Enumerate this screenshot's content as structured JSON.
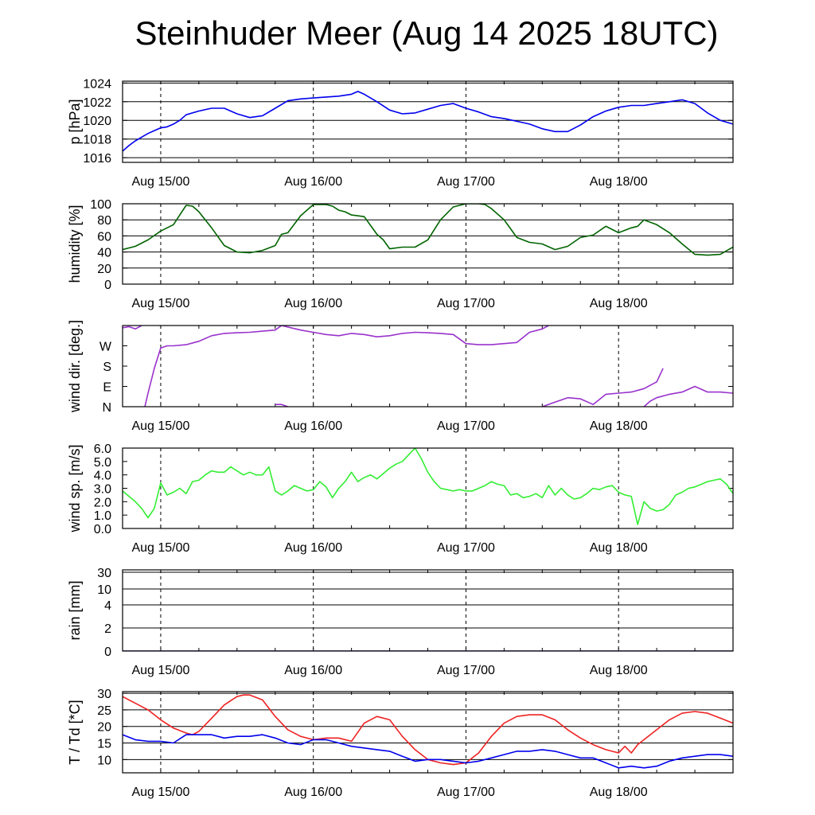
{
  "title": "Steinhuder Meer (Aug 14 2025 18UTC)",
  "colors": {
    "p": "#0000ee",
    "humidity": "#006400",
    "wind_dir": "#9932cc",
    "wind_speed": "#33ee33",
    "rain": "#000080",
    "T": "#ee2222",
    "Td": "#0000ee",
    "grid": "#000000"
  },
  "chart_data": [
    {
      "type": "line",
      "ylabel": "p [hPa]",
      "x_unit": "hours after Aug 14 18UTC",
      "xlim": [
        0,
        96
      ],
      "x_tick_labels": [
        "Aug 15/00",
        "Aug 16/00",
        "Aug 17/00",
        "Aug 18/00"
      ],
      "x_tick_hours": [
        6,
        30,
        54,
        78
      ],
      "ylim": [
        1015.5,
        1024.2
      ],
      "y_ticks": [
        1016,
        1018,
        1020,
        1022,
        1024
      ],
      "y_tick_labels": [
        "1016",
        "1018",
        "1020",
        "1022",
        "1024"
      ],
      "grid": true,
      "series": [
        {
          "color": "p",
          "x": [
            0,
            1,
            2,
            3,
            4,
            5,
            6,
            7,
            8,
            9,
            10,
            12,
            14,
            16,
            18,
            20,
            22,
            24,
            26,
            28,
            30,
            32,
            34,
            36,
            37,
            38,
            40,
            42,
            44,
            46,
            48,
            50,
            52,
            54,
            56,
            58,
            60,
            62,
            64,
            66,
            68,
            70,
            72,
            74,
            76,
            78,
            80,
            82,
            84,
            86,
            88,
            90,
            92,
            94,
            96
          ],
          "y": [
            1016.7,
            1017.3,
            1017.8,
            1018.2,
            1018.6,
            1018.9,
            1019.2,
            1019.3,
            1019.6,
            1020.0,
            1020.6,
            1021.0,
            1021.3,
            1021.3,
            1020.7,
            1020.3,
            1020.5,
            1021.3,
            1022.1,
            1022.3,
            1022.4,
            1022.5,
            1022.6,
            1022.8,
            1023.1,
            1022.8,
            1022.0,
            1021.1,
            1020.7,
            1020.8,
            1021.2,
            1021.6,
            1021.8,
            1021.3,
            1020.9,
            1020.4,
            1020.2,
            1019.9,
            1019.6,
            1019.1,
            1018.8,
            1018.8,
            1019.5,
            1020.4,
            1021.0,
            1021.4,
            1021.6,
            1021.6,
            1021.8,
            1022.0,
            1022.2,
            1021.8,
            1020.8,
            1020.0,
            1019.6
          ]
        }
      ]
    },
    {
      "type": "line",
      "ylabel": "humidity [%]",
      "xlim": [
        0,
        96
      ],
      "x_tick_labels": [
        "Aug 15/00",
        "Aug 16/00",
        "Aug 17/00",
        "Aug 18/00"
      ],
      "x_tick_hours": [
        6,
        30,
        54,
        78
      ],
      "ylim": [
        0,
        100
      ],
      "y_ticks": [
        0,
        20,
        40,
        60,
        80,
        100
      ],
      "y_tick_labels": [
        "0",
        "20",
        "40",
        "60",
        "80",
        "100"
      ],
      "grid": true,
      "series": [
        {
          "color": "humidity",
          "x": [
            0,
            2,
            4,
            6,
            8,
            9,
            10,
            11,
            12,
            14,
            16,
            18,
            20,
            22,
            24,
            25,
            26,
            28,
            30,
            32,
            33,
            34,
            35,
            36,
            38,
            40,
            41,
            42,
            44,
            46,
            48,
            50,
            52,
            54,
            56,
            57,
            58,
            60,
            62,
            64,
            66,
            68,
            70,
            72,
            74,
            76,
            78,
            80,
            81,
            82,
            84,
            86,
            88,
            90,
            92,
            94,
            96
          ],
          "y": [
            43,
            47,
            55,
            66,
            74,
            86,
            98,
            97,
            90,
            70,
            48,
            40,
            39,
            42,
            48,
            62,
            64,
            85,
            99,
            99,
            97,
            92,
            90,
            86,
            84,
            62,
            55,
            44,
            46,
            46,
            55,
            80,
            96,
            100,
            100,
            99,
            94,
            80,
            58,
            52,
            50,
            43,
            47,
            58,
            61,
            72,
            64,
            70,
            72,
            80,
            74,
            64,
            50,
            37,
            36,
            37,
            46
          ]
        }
      ]
    },
    {
      "type": "line",
      "ylabel": "wind dir. [deg.]",
      "xlim": [
        0,
        96
      ],
      "x_tick_labels": [
        "Aug 15/00",
        "Aug 16/00",
        "Aug 17/00",
        "Aug 18/00"
      ],
      "x_tick_hours": [
        6,
        30,
        54,
        78
      ],
      "ylim": [
        0,
        360
      ],
      "y_ticks": [
        0,
        90,
        180,
        270
      ],
      "y_tick_labels": [
        "N",
        "E",
        "S",
        "W"
      ],
      "grid": false,
      "series": [
        {
          "color": "wind_dir",
          "x": [
            0,
            1,
            2,
            3
          ],
          "y": [
            350,
            355,
            345,
            360
          ]
        },
        {
          "color": "wind_dir",
          "x": [
            3.5,
            4,
            5,
            6,
            7,
            8,
            10,
            12,
            14,
            16,
            18,
            20,
            22,
            24,
            25
          ],
          "y": [
            0,
            60,
            170,
            260,
            270,
            270,
            275,
            290,
            315,
            325,
            328,
            330,
            335,
            340,
            360
          ]
        },
        {
          "color": "wind_dir",
          "x": [
            25,
            28,
            30,
            32,
            34,
            36,
            38,
            40,
            42,
            44,
            46,
            48,
            50,
            52,
            54,
            56,
            58,
            60,
            62,
            64,
            66,
            67
          ],
          "y": [
            360,
            340,
            330,
            320,
            315,
            325,
            320,
            310,
            315,
            325,
            330,
            328,
            325,
            320,
            280,
            275,
            275,
            280,
            285,
            330,
            345,
            360
          ]
        },
        {
          "color": "wind_dir",
          "x": [
            24,
            25,
            26
          ],
          "y": [
            10,
            10,
            0
          ]
        },
        {
          "color": "wind_dir",
          "x": [
            66,
            68,
            70,
            72,
            74,
            76,
            78,
            80,
            82,
            84,
            85
          ],
          "y": [
            0,
            20,
            40,
            35,
            10,
            55,
            60,
            65,
            80,
            110,
            170
          ]
        },
        {
          "color": "wind_dir",
          "x": [
            82,
            83,
            84,
            86,
            88,
            90,
            92,
            94,
            96
          ],
          "y": [
            0,
            25,
            40,
            55,
            65,
            90,
            65,
            65,
            60
          ]
        }
      ]
    },
    {
      "type": "line",
      "ylabel": "wind sp. [m/s]",
      "xlim": [
        0,
        96
      ],
      "x_tick_labels": [
        "Aug 15/00",
        "Aug 16/00",
        "Aug 17/00",
        "Aug 18/00"
      ],
      "x_tick_hours": [
        6,
        30,
        54,
        78
      ],
      "ylim": [
        0,
        6.0
      ],
      "y_ticks": [
        0,
        1,
        2,
        3,
        4,
        5,
        6
      ],
      "y_tick_labels": [
        "0.0",
        "1.0",
        "2.0",
        "3.0",
        "4.0",
        "5.0",
        "6.0"
      ],
      "grid": false,
      "series": [
        {
          "color": "wind_speed",
          "x": [
            0,
            2,
            3,
            4,
            5,
            6,
            7,
            8,
            9,
            10,
            11,
            12,
            13,
            14,
            15,
            16,
            17,
            18,
            19,
            20,
            21,
            22,
            23,
            24,
            25,
            26,
            27,
            28,
            29,
            30,
            31,
            32,
            33,
            34,
            35,
            36,
            37,
            38,
            39,
            40,
            41,
            42,
            43,
            44,
            45,
            46,
            47,
            48,
            49,
            50,
            51,
            52,
            53,
            54,
            55,
            56,
            57,
            58,
            59,
            60,
            61,
            62,
            63,
            64,
            65,
            66,
            67,
            68,
            69,
            70,
            71,
            72,
            73,
            74,
            75,
            76,
            77,
            78,
            79,
            80,
            81,
            82,
            83,
            84,
            85,
            86,
            87,
            88,
            89,
            90,
            91,
            92,
            93,
            94,
            95,
            96
          ],
          "y": [
            2.8,
            2.0,
            1.5,
            0.8,
            1.5,
            3.4,
            2.5,
            2.7,
            3.0,
            2.6,
            3.5,
            3.6,
            4.0,
            4.3,
            4.2,
            4.2,
            4.6,
            4.3,
            4.0,
            4.2,
            4.0,
            4.0,
            4.6,
            2.8,
            2.5,
            2.8,
            3.2,
            3.0,
            2.8,
            2.9,
            3.5,
            3.1,
            2.3,
            3.0,
            3.5,
            4.2,
            3.5,
            3.8,
            4.0,
            3.7,
            4.1,
            4.5,
            4.8,
            5.0,
            5.5,
            6.0,
            5.2,
            4.2,
            3.5,
            3.0,
            2.9,
            2.8,
            2.9,
            2.8,
            2.8,
            3.0,
            3.2,
            3.5,
            3.3,
            3.2,
            2.5,
            2.6,
            2.3,
            2.4,
            2.6,
            2.3,
            3.2,
            2.5,
            3.0,
            2.5,
            2.2,
            2.3,
            2.6,
            3.0,
            2.9,
            3.1,
            3.2,
            2.7,
            2.5,
            2.4,
            0.3,
            2.0,
            1.5,
            1.3,
            1.4,
            1.8,
            2.5,
            2.7,
            3.0,
            3.1,
            3.3,
            3.5,
            3.6,
            3.7,
            3.3,
            2.6
          ]
        }
      ]
    },
    {
      "type": "line",
      "ylabel": "rain [mm]",
      "xlim": [
        0,
        96
      ],
      "x_tick_labels": [
        "Aug 15/00",
        "Aug 16/00",
        "Aug 17/00",
        "Aug 18/00"
      ],
      "x_tick_hours": [
        6,
        30,
        54,
        78
      ],
      "y_scale": "nonlinear",
      "y_ticks": [
        0,
        2,
        4,
        10,
        30
      ],
      "y_tick_labels": [
        "0",
        "2",
        "4",
        "10",
        "30"
      ],
      "grid": true,
      "series": [
        {
          "color": "rain",
          "x": [
            0,
            96
          ],
          "y": [
            0,
            0
          ]
        }
      ]
    },
    {
      "type": "line",
      "ylabel": "T / Td [*C]",
      "xlim": [
        0,
        96
      ],
      "x_tick_labels": [
        "Aug 15/00",
        "Aug 16/00",
        "Aug 17/00",
        "Aug 18/00"
      ],
      "x_tick_hours": [
        6,
        30,
        54,
        78
      ],
      "ylim": [
        6,
        30.5
      ],
      "y_ticks": [
        10,
        15,
        20,
        25,
        30
      ],
      "y_tick_labels": [
        "10",
        "15",
        "20",
        "25",
        "30"
      ],
      "grid": true,
      "series": [
        {
          "color": "T",
          "x": [
            0,
            2,
            4,
            6,
            8,
            10,
            11,
            12,
            14,
            16,
            18,
            19,
            20,
            22,
            24,
            26,
            28,
            30,
            32,
            34,
            36,
            38,
            40,
            42,
            44,
            46,
            48,
            50,
            52,
            54,
            56,
            58,
            60,
            62,
            64,
            66,
            68,
            70,
            72,
            74,
            76,
            78,
            79,
            80,
            81,
            82,
            84,
            86,
            88,
            90,
            92,
            94,
            96
          ],
          "y": [
            29,
            27,
            25,
            22,
            19.5,
            18,
            17.5,
            18.5,
            22.5,
            26.5,
            29,
            29.5,
            29.5,
            28,
            23,
            19,
            17,
            16,
            16.5,
            16.5,
            15.5,
            21,
            23,
            22,
            17,
            13,
            10,
            9,
            8.5,
            9,
            12,
            17,
            21,
            23,
            23.5,
            23.5,
            22,
            19,
            16.5,
            14.5,
            13,
            12,
            14,
            12,
            14.5,
            16,
            19,
            22,
            24,
            24.5,
            24,
            22.5,
            21
          ]
        },
        {
          "color": "Td",
          "x": [
            0,
            2,
            4,
            6,
            8,
            10,
            12,
            14,
            16,
            18,
            20,
            22,
            24,
            26,
            28,
            30,
            32,
            34,
            36,
            38,
            40,
            42,
            44,
            46,
            48,
            50,
            52,
            54,
            56,
            58,
            60,
            62,
            64,
            66,
            68,
            70,
            72,
            74,
            76,
            78,
            80,
            82,
            84,
            86,
            88,
            90,
            92,
            94,
            96
          ],
          "y": [
            17.5,
            16,
            15.5,
            15.5,
            15,
            17.5,
            17.5,
            17.5,
            16.5,
            17,
            17,
            17.5,
            16.5,
            15,
            14.5,
            16,
            16,
            15,
            14,
            13.5,
            13,
            12.5,
            11,
            9.5,
            10,
            10,
            9.5,
            9,
            9.5,
            10.5,
            11.5,
            12.5,
            12.5,
            13,
            12.5,
            11.5,
            10.5,
            10.5,
            9,
            7.5,
            8,
            7.5,
            8,
            9.5,
            10.5,
            11,
            11.5,
            11.5,
            11
          ]
        }
      ]
    }
  ]
}
